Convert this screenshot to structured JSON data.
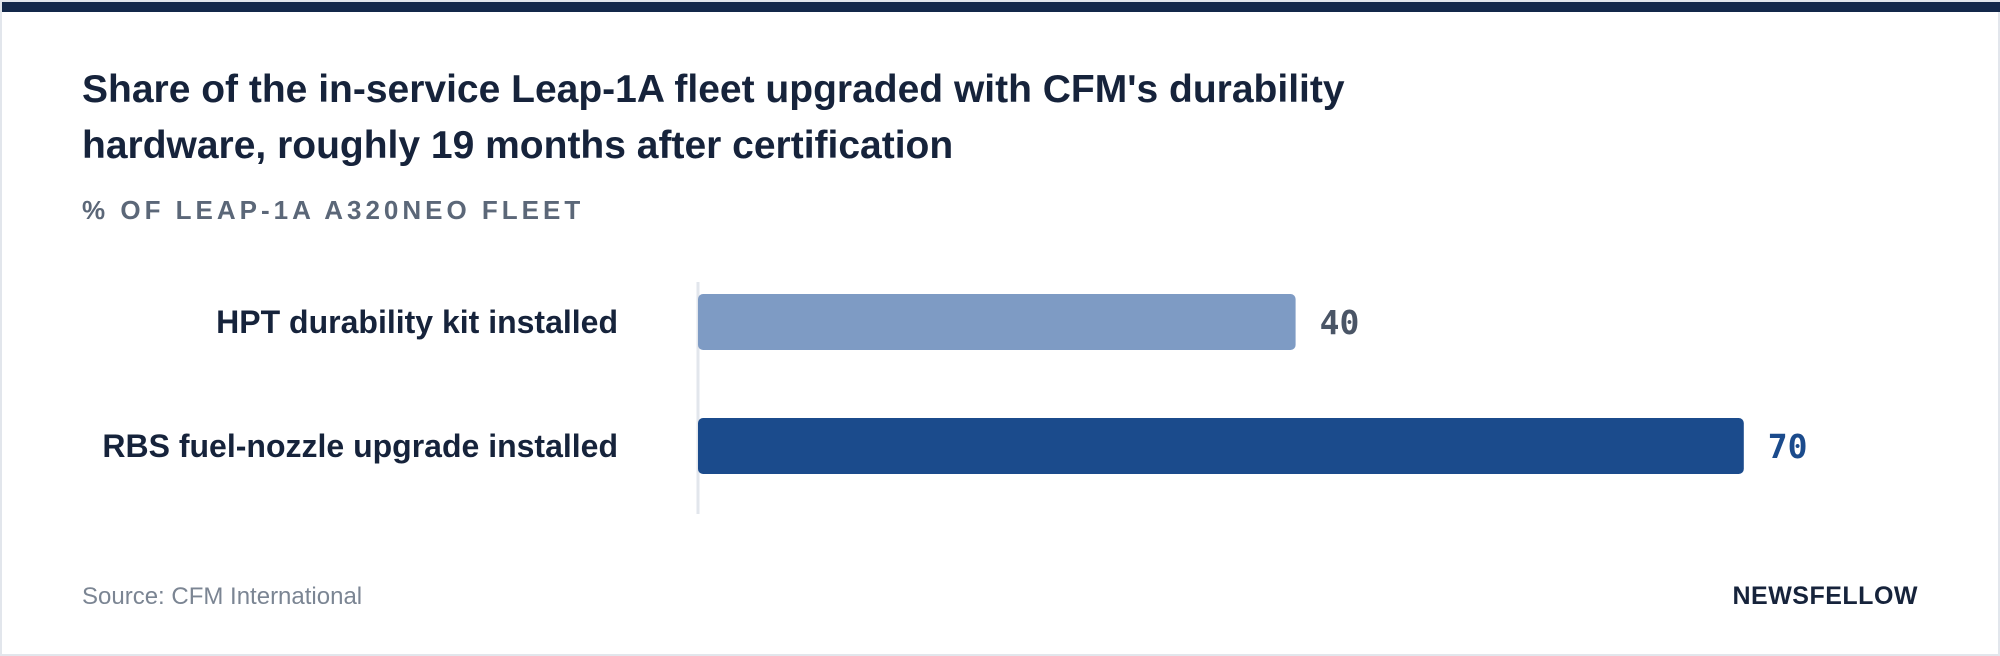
{
  "title": "Share of the in-service Leap-1A fleet upgraded with CFM's durability hardware, roughly 19 months after certification",
  "subtitle": "% of Leap-1A A320neo fleet",
  "source": "Source: CFM International",
  "brand": "NEWSFELLOW",
  "colors": {
    "top_bar": "#13284a",
    "series": [
      "#7e9bc4",
      "#1b4b8c"
    ],
    "value_labels": [
      "#4a5566",
      "#1b4b8c"
    ],
    "baseline": "#e2e6ec"
  },
  "chart_data": {
    "type": "bar",
    "orientation": "horizontal",
    "categories": [
      "HPT durability kit installed",
      "RBS fuel-nozzle upgrade installed"
    ],
    "values": [
      40,
      70
    ],
    "data_labels": [
      "40",
      "70"
    ],
    "xlim": [
      0,
      100
    ],
    "grid": false,
    "legend": "none",
    "title": "Share of the in-service Leap-1A fleet upgraded with CFM's durability hardware, roughly 19 months after certification",
    "ylabel": "% of Leap-1A A320neo fleet"
  }
}
